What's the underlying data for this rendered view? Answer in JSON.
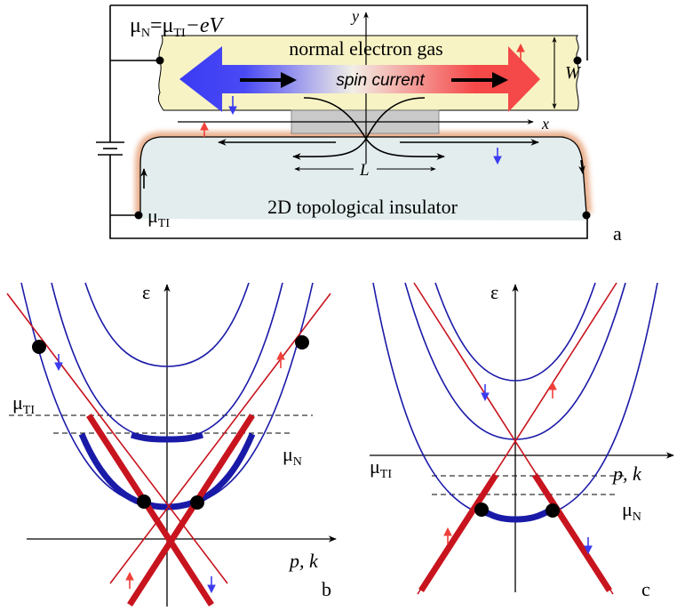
{
  "panel_a": {
    "mu_n_lhs": "μ",
    "mu_n_lhs_sub": "N",
    "mu_n_eq": "=μ",
    "mu_n_ti_sub": "TI",
    "mu_n_rhs": "−eV",
    "normal_gas_label": "normal electron gas",
    "spin_current_label": "spin current",
    "width_label": "W",
    "y_axis_label": "y",
    "x_axis_label": "x",
    "length_label": "L",
    "ti_label": "2D topological insulator",
    "mu_ti": "μ",
    "mu_ti_sub": "TI",
    "panel_letter": "a",
    "colors": {
      "electron_gas": "#f7f3c4",
      "insulator": "#e3eded",
      "edge_glow": "#e8a882",
      "spin_down_blue": "#3b3bf0",
      "spin_up_red": "#f0403a"
    }
  },
  "panel_b": {
    "energy_label": "ε",
    "mu_ti": "μ",
    "mu_ti_sub": "TI",
    "mu_n": "μ",
    "mu_n_sub": "N",
    "momentum_label": "p, k",
    "panel_letter": "b"
  },
  "panel_c": {
    "energy_label": "ε",
    "mu_ti": "μ",
    "mu_ti_sub": "TI",
    "mu_n": "μ",
    "mu_n_sub": "N",
    "momentum_label": "p, k",
    "panel_letter": "c"
  },
  "colors": {
    "band_blue": "#1a1aa8",
    "band_red": "#c8141e",
    "axis": "#000000"
  }
}
